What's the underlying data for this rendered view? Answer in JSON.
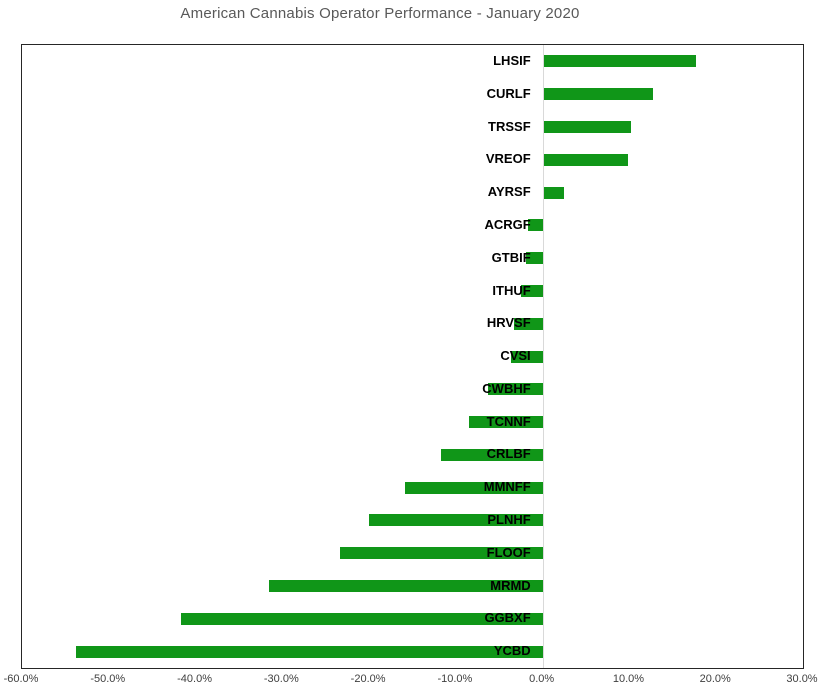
{
  "chart_data": {
    "type": "bar",
    "orientation": "horizontal",
    "title": "American Cannabis Operator Performance - January 2020",
    "categories": [
      "LHSIF",
      "CURLF",
      "TRSSF",
      "VREOF",
      "AYRSF",
      "ACRGF",
      "GTBIF",
      "ITHUF",
      "HRVSF",
      "CVSI",
      "CWBHF",
      "TCNNF",
      "CRLBF",
      "MMNFF",
      "PLNHF",
      "FLOOF",
      "MRMD",
      "GGBXF",
      "YCBD"
    ],
    "values": [
      17.6,
      12.6,
      10.1,
      9.7,
      2.4,
      -1.7,
      -1.9,
      -2.5,
      -3.3,
      -3.6,
      -6.3,
      -8.5,
      -11.7,
      -15.9,
      -20.0,
      -23.3,
      -31.5,
      -41.7,
      -53.8
    ],
    "unit": "%",
    "xlabel": "",
    "ylabel": "",
    "xlim": [
      -60,
      30
    ],
    "x_tick_labels": [
      "-60.0%",
      "-50.0%",
      "-40.0%",
      "-30.0%",
      "-20.0%",
      "-10.0%",
      "0.0%",
      "10.0%",
      "20.0%",
      "30.0%"
    ],
    "gridlines": "single vertical line at zero only",
    "legend": "none",
    "data_labels": "none"
  },
  "colors": {
    "bar": "#109618",
    "title_text": "#595959",
    "tick_text": "#404040",
    "category_text": "#000000",
    "plot_border": "#262626",
    "zero_gridline": "#d9d9d9",
    "background": "#ffffff"
  }
}
